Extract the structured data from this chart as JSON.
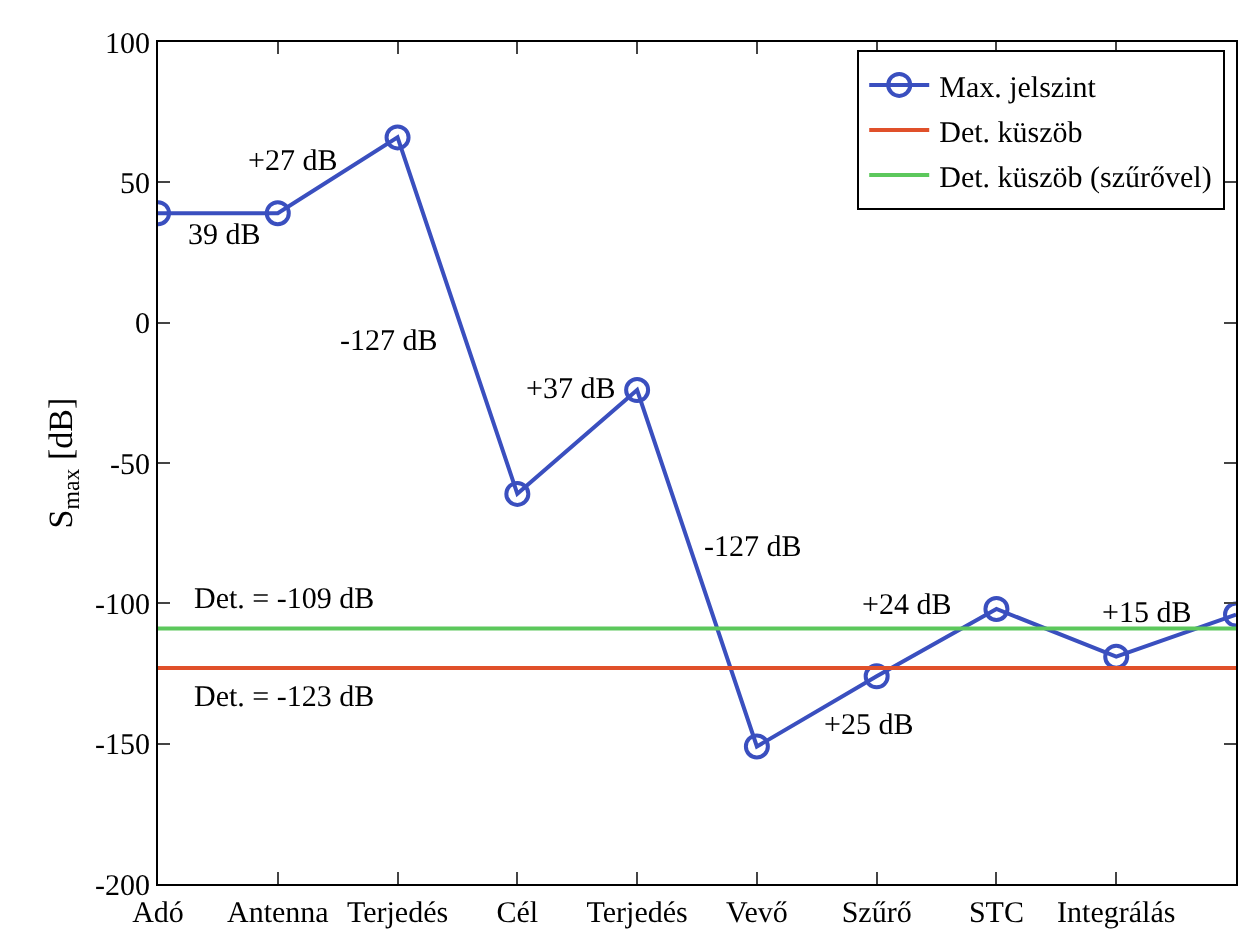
{
  "chart_data": {
    "type": "line",
    "ylabel": "S$_{max}$ [dB]",
    "categories": [
      "Adó",
      "Antenna",
      "Terjedés",
      "Cél",
      "Terjedés",
      "Vevő",
      "Szűrő",
      "STC",
      "Integrálás",
      null
    ],
    "ylim": [
      -200,
      100
    ],
    "yticks": [
      -200,
      -150,
      -100,
      -50,
      0,
      50,
      100
    ],
    "series": [
      {
        "name": "Max. jelszint",
        "color": "#3a4fbf",
        "values": [
          39,
          39,
          66,
          -61,
          -24,
          -151,
          -126,
          -102,
          -119,
          -104
        ]
      }
    ],
    "marker": "circle",
    "line_style": "solid",
    "legend": "top right",
    "ref_lines": [
      {
        "axis": "y",
        "value": -123,
        "label": "Det. küszöb",
        "color": "#e0502a"
      },
      {
        "axis": "y",
        "value": -109,
        "label": "Det. küszöb (szűrővel)",
        "color": "#5cc85c"
      }
    ],
    "annotations": [
      "39 dB",
      "+27 dB",
      "-127 dB",
      "+37 dB",
      "-127 dB",
      "+25 dB",
      "+24 dB",
      "+15 dB",
      "Det. = -109 dB",
      "Det. = -123 dB"
    ]
  }
}
